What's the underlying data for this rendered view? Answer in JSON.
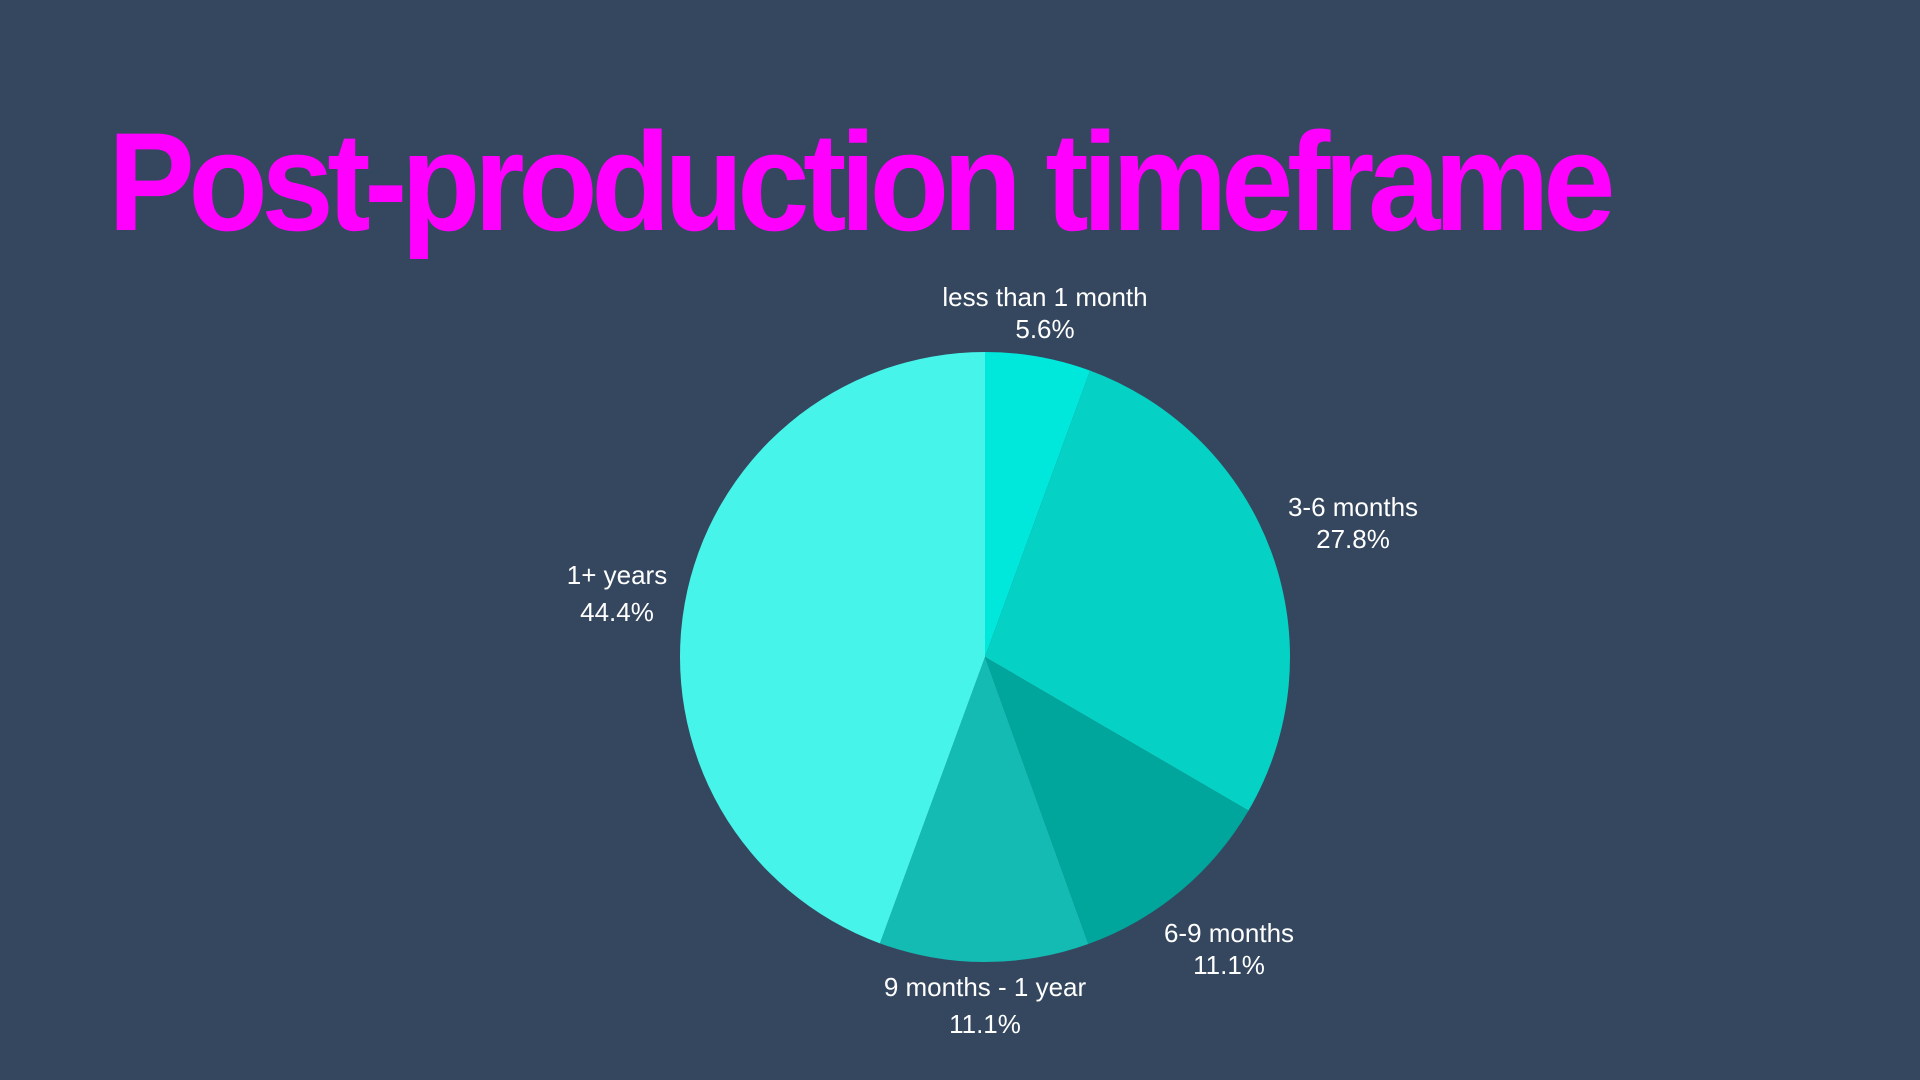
{
  "slide": {
    "title": "Post-production timeframe",
    "background_color": "#34475f",
    "title_color": "#ff00ff"
  },
  "chart_data": {
    "type": "pie",
    "title": "Post-production timeframe",
    "start_angle_deg": 0,
    "direction": "clockwise",
    "slices": [
      {
        "label": "less than 1 month",
        "value": 5.6,
        "display": "5.6%",
        "color": "#00e8dc"
      },
      {
        "label": "3-6 months",
        "value": 27.8,
        "display": "27.8%",
        "color": "#06d1c5"
      },
      {
        "label": "6-9 months",
        "value": 11.1,
        "display": "11.1%",
        "color": "#00a59c"
      },
      {
        "label": "9 months - 1 year",
        "value": 11.1,
        "display": "11.1%",
        "color": "#13bbb3"
      },
      {
        "label": "1+ years",
        "value": 44.4,
        "display": "44.4%",
        "color": "#47f4e9"
      }
    ],
    "categories": [
      "less than 1 month",
      "3-6 months",
      "6-9 months",
      "9 months - 1 year",
      "1+ years"
    ],
    "values": [
      5.6,
      27.8,
      11.1,
      11.1,
      44.4
    ],
    "legend": "none (labels outside slices)"
  }
}
